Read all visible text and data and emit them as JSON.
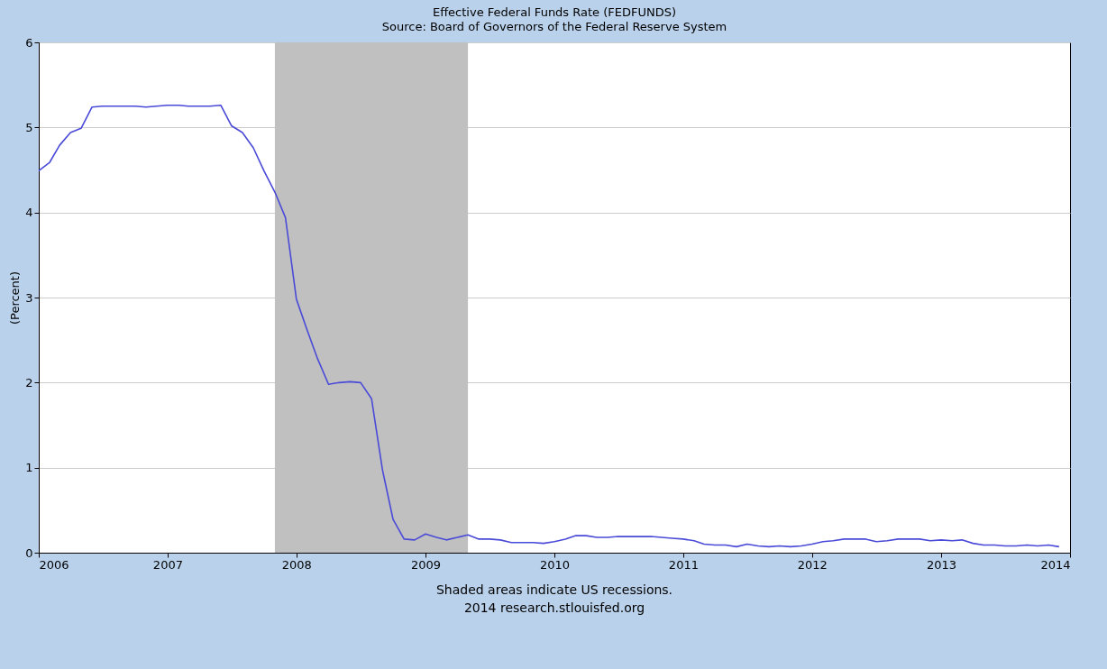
{
  "chart_data": {
    "type": "line",
    "title": "Effective Federal Funds Rate (FEDFUNDS)",
    "subtitle": "Source: Board of Governors of the Federal Reserve System",
    "ylabel": "(Percent)",
    "x": [
      "2006-01",
      "2006-02",
      "2006-03",
      "2006-04",
      "2006-05",
      "2006-06",
      "2006-07",
      "2006-08",
      "2006-09",
      "2006-10",
      "2006-11",
      "2006-12",
      "2007-01",
      "2007-02",
      "2007-03",
      "2007-04",
      "2007-05",
      "2007-06",
      "2007-07",
      "2007-08",
      "2007-09",
      "2007-10",
      "2007-11",
      "2007-12",
      "2008-01",
      "2008-02",
      "2008-03",
      "2008-04",
      "2008-05",
      "2008-06",
      "2008-07",
      "2008-08",
      "2008-09",
      "2008-10",
      "2008-11",
      "2008-12",
      "2009-01",
      "2009-02",
      "2009-03",
      "2009-04",
      "2009-05",
      "2009-06",
      "2009-07",
      "2009-08",
      "2009-09",
      "2009-10",
      "2009-11",
      "2009-12",
      "2010-01",
      "2010-02",
      "2010-03",
      "2010-04",
      "2010-05",
      "2010-06",
      "2010-07",
      "2010-08",
      "2010-09",
      "2010-10",
      "2010-11",
      "2010-12",
      "2011-01",
      "2011-02",
      "2011-03",
      "2011-04",
      "2011-05",
      "2011-06",
      "2011-07",
      "2011-08",
      "2011-09",
      "2011-10",
      "2011-11",
      "2011-12",
      "2012-01",
      "2012-02",
      "2012-03",
      "2012-04",
      "2012-05",
      "2012-06",
      "2012-07",
      "2012-08",
      "2012-09",
      "2012-10",
      "2012-11",
      "2012-12",
      "2013-01",
      "2013-02",
      "2013-03",
      "2013-04",
      "2013-05",
      "2013-06",
      "2013-07",
      "2013-08",
      "2013-09",
      "2013-10",
      "2013-11",
      "2013-12"
    ],
    "series": [
      {
        "color": "#4a4ad8",
        "values": [
          4.49,
          4.59,
          4.79,
          4.94,
          4.99,
          5.24,
          5.25,
          5.25,
          5.25,
          5.25,
          5.24,
          5.25,
          5.26,
          5.26,
          5.25,
          5.25,
          5.25,
          5.26,
          5.02,
          4.94,
          4.76,
          4.49,
          4.24,
          3.94,
          2.98,
          2.61,
          2.28,
          1.98,
          2.0,
          2.01,
          2.0,
          1.81,
          0.97,
          0.39,
          0.16,
          0.15,
          0.22,
          0.18,
          0.15,
          0.18,
          0.21,
          0.16,
          0.16,
          0.15,
          0.12,
          0.12,
          0.12,
          0.11,
          0.13,
          0.16,
          0.2,
          0.2,
          0.18,
          0.18,
          0.19,
          0.19,
          0.19,
          0.19,
          0.18,
          0.17,
          0.16,
          0.14,
          0.1,
          0.09,
          0.09,
          0.07,
          0.1,
          0.08,
          0.07,
          0.08,
          0.07,
          0.08,
          0.1,
          0.13,
          0.14,
          0.16,
          0.16,
          0.16,
          0.13,
          0.14,
          0.16,
          0.16,
          0.16,
          0.14,
          0.15,
          0.14,
          0.15,
          0.11,
          0.09,
          0.09,
          0.08,
          0.08,
          0.09,
          0.08,
          0.09,
          0.07
        ]
      }
    ],
    "xlim": [
      "2006-01-01",
      "2014-01-01"
    ],
    "xticks": [
      "2006",
      "2007",
      "2008",
      "2009",
      "2010",
      "2011",
      "2012",
      "2013",
      "2014"
    ],
    "ylim": [
      0,
      6
    ],
    "yticks": [
      0,
      1,
      2,
      3,
      4,
      5,
      6
    ],
    "bands": [
      {
        "axis": "x",
        "from": "2007-11",
        "to": "2009-05",
        "color": "#c0c0c0"
      }
    ],
    "grid": "y",
    "legend": false,
    "marker": "none",
    "line_style": "solid",
    "annotations": [
      "Shaded areas indicate US recessions.",
      "2014 research.stlouisfed.org"
    ]
  }
}
